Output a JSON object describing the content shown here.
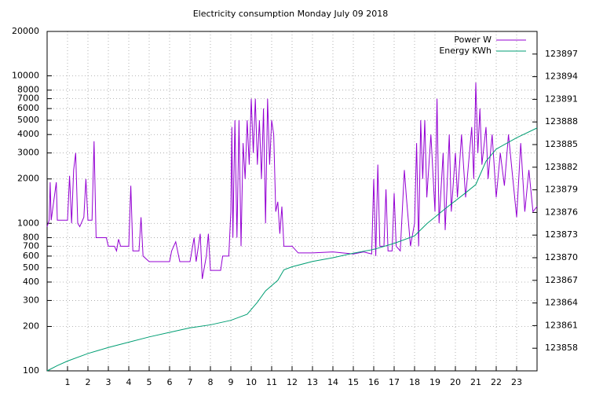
{
  "chart_data": {
    "type": "line",
    "title": "Electricity consumption Monday July 09 2018",
    "xlim": [
      0,
      24
    ],
    "xticks": [
      1,
      2,
      3,
      4,
      5,
      6,
      7,
      8,
      9,
      10,
      11,
      12,
      13,
      14,
      15,
      16,
      17,
      18,
      19,
      20,
      21,
      22,
      23
    ],
    "ylim": [
      100,
      20000
    ],
    "ylog": true,
    "yticks": [
      100,
      200,
      300,
      400,
      500,
      600,
      700,
      800,
      1000,
      2000,
      3000,
      4000,
      5000,
      6000,
      7000,
      8000,
      10000,
      20000
    ],
    "y2lim": [
      123855,
      123900
    ],
    "y2ticks": [
      123858,
      123861,
      123864,
      123867,
      123870,
      123873,
      123876,
      123879,
      123882,
      123885,
      123888,
      123891,
      123894,
      123897
    ],
    "grid": true,
    "legend": "top-right",
    "series": [
      {
        "name": "Power W",
        "color": "#9400d3",
        "x": [
          0,
          0.1,
          0.15,
          0.2,
          0.45,
          0.5,
          1,
          1.1,
          1.2,
          1.3,
          1.4,
          1.5,
          1.6,
          1.8,
          1.9,
          2,
          2.2,
          2.3,
          2.4,
          2.9,
          3,
          3.3,
          3.4,
          3.5,
          3.6,
          4,
          4.1,
          4.2,
          4.5,
          4.6,
          4.7,
          5,
          6,
          6.1,
          6.3,
          6.5,
          7,
          7.2,
          7.3,
          7.5,
          7.6,
          7.8,
          7.9,
          8,
          8.5,
          8.6,
          8.9,
          9,
          9.05,
          9.1,
          9.2,
          9.3,
          9.4,
          9.5,
          9.6,
          9.7,
          9.8,
          9.9,
          10,
          10.1,
          10.2,
          10.3,
          10.4,
          10.5,
          10.6,
          10.7,
          10.8,
          10.9,
          11,
          11.1,
          11.2,
          11.3,
          11.4,
          11.5,
          11.6,
          12,
          12.3,
          13,
          14,
          15,
          15.5,
          15.9,
          16,
          16.1,
          16.2,
          16.3,
          16.5,
          16.6,
          16.7,
          16.9,
          17,
          17.1,
          17.3,
          17.5,
          17.6,
          17.8,
          18,
          18.1,
          18.2,
          18.3,
          18.4,
          18.5,
          18.6,
          18.8,
          19,
          19.1,
          19.2,
          19.4,
          19.5,
          19.7,
          19.8,
          20,
          20.1,
          20.3,
          20.5,
          20.8,
          20.9,
          21,
          21.1,
          21.2,
          21.3,
          21.5,
          21.6,
          21.8,
          22,
          22.2,
          22.4,
          22.6,
          23,
          23.2,
          23.4,
          23.6,
          23.8,
          24
        ],
        "values": [
          950,
          1050,
          1900,
          1050,
          1900,
          1050,
          1050,
          2100,
          1000,
          2300,
          3000,
          1000,
          950,
          1100,
          2000,
          1050,
          1050,
          3600,
          800,
          800,
          700,
          700,
          650,
          780,
          700,
          700,
          1800,
          650,
          650,
          1100,
          600,
          550,
          550,
          650,
          750,
          550,
          550,
          800,
          550,
          850,
          420,
          600,
          850,
          480,
          480,
          600,
          600,
          1200,
          4500,
          800,
          5000,
          800,
          5000,
          700,
          3500,
          2000,
          5000,
          2500,
          7000,
          3000,
          7000,
          2500,
          5000,
          2000,
          6000,
          1000,
          7000,
          2500,
          5000,
          4000,
          1200,
          1400,
          850,
          1300,
          700,
          700,
          630,
          630,
          640,
          620,
          640,
          620,
          2000,
          600,
          2500,
          700,
          700,
          1700,
          650,
          650,
          1600,
          700,
          650,
          2300,
          1500,
          700,
          1000,
          3500,
          700,
          5000,
          2000,
          5000,
          1500,
          4000,
          1200,
          7000,
          1000,
          3000,
          900,
          4000,
          1200,
          3000,
          1500,
          4000,
          1500,
          4500,
          2000,
          9000,
          3000,
          6000,
          2500,
          4500,
          2000,
          4000,
          1500,
          3000,
          1800,
          4000,
          1100,
          3500,
          1200,
          2300,
          1200,
          1300
        ]
      },
      {
        "name": "Energy KWh",
        "color": "#009e73",
        "axis": "y2",
        "x": [
          0,
          0.5,
          1,
          2,
          3,
          4,
          5,
          6,
          7,
          8,
          9,
          9.8,
          10.3,
          10.7,
          11.3,
          11.6,
          12,
          13,
          14,
          15,
          16,
          17,
          18,
          18.6,
          19.5,
          20.5,
          21,
          21.5,
          22,
          23,
          24
        ],
        "values": [
          123855,
          123855.7,
          123856.3,
          123857.3,
          123858.1,
          123858.8,
          123859.5,
          123860.1,
          123860.7,
          123861.1,
          123861.7,
          123862.5,
          123864.1,
          123865.6,
          123867,
          123868.4,
          123868.8,
          123869.5,
          123870,
          123870.6,
          123871.1,
          123871.9,
          123872.9,
          123874.5,
          123876.5,
          123878.6,
          123879.7,
          123882.8,
          123884.4,
          123885.9,
          123887.2
        ]
      }
    ]
  }
}
